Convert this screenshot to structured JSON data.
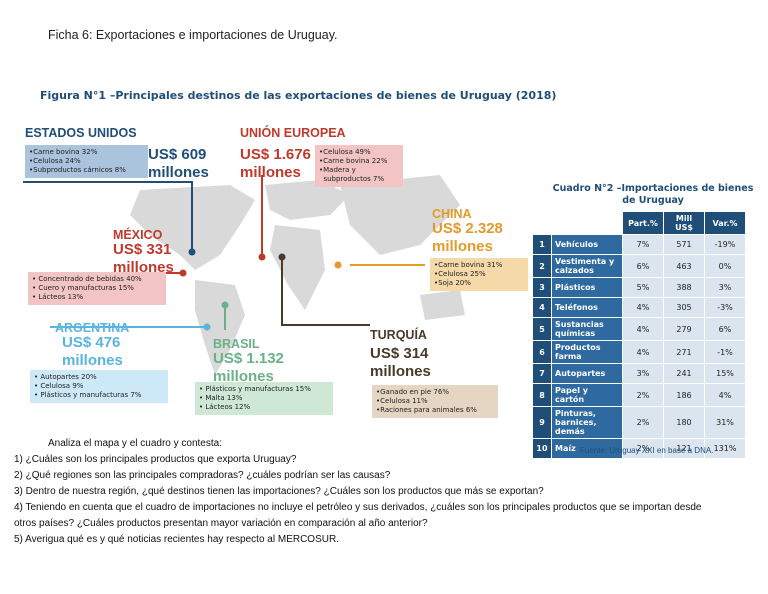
{
  "header": {
    "title": "Ficha 6: Exportaciones e importaciones de Uruguay."
  },
  "figure": {
    "title": "Figura N°1 –Principales destinos de las exportaciones de bienes de Uruguay (2018)",
    "regions": [
      {
        "name": "ESTADOS UNIDOS",
        "amount": "US$ 609",
        "unit": "millones",
        "items": [
          "•Carne bovina 32%",
          "•Celulosa 24%",
          "•Subproductos cárnicos 8%"
        ]
      },
      {
        "name": "UNIÓN EUROPEA",
        "amount": "US$ 1.676",
        "unit": "millones",
        "items": [
          "•Celulosa 49%",
          "•Carne bovina 22%",
          "•Madera y",
          "  subproductos 7%"
        ]
      },
      {
        "name": "CHINA",
        "amount": "US$ 2.328",
        "unit": "millones",
        "items": [
          "•Carne bovina 31%",
          "•Celulosa 25%",
          "•Soja 20%"
        ]
      },
      {
        "name": "MÉXICO",
        "amount": "US$ 331",
        "unit": "millones",
        "items": [
          "• Concentrado de bebidas 40%",
          "• Cuero y manufacturas 15%",
          "• Lácteos 13%"
        ]
      },
      {
        "name": "ARGENTINA",
        "amount": "US$ 476",
        "unit": "millones",
        "items": [
          "• Autopartes 20%",
          "• Celulosa 9%",
          "• Plásticos y manufacturas 7%"
        ]
      },
      {
        "name": "BRASIL",
        "amount": "US$ 1.132",
        "unit": "millones",
        "items": [
          "• Plásticos y manufacturas 15%",
          "• Malta 13%",
          "• Lácteos 12%"
        ]
      },
      {
        "name": "TURQUÍA",
        "amount": "US$ 314",
        "unit": "millones",
        "items": [
          "•Ganado en pie 76%",
          "•Celulosa 11%",
          "•Raciones para animales 6%"
        ]
      }
    ]
  },
  "table": {
    "title": "Cuadro N°2 –Importaciones de bienes de Uruguay",
    "headers": [
      "Part.%",
      "Mill US$",
      "Var.%"
    ],
    "rows": [
      [
        "1",
        "Vehículos",
        "7%",
        "571",
        "-19%"
      ],
      [
        "2",
        "Vestimenta y calzados",
        "6%",
        "463",
        "0%"
      ],
      [
        "3",
        "Plásticos",
        "5%",
        "388",
        "3%"
      ],
      [
        "4",
        "Teléfonos",
        "4%",
        "305",
        "-3%"
      ],
      [
        "5",
        "Sustancias químicas",
        "4%",
        "279",
        "6%"
      ],
      [
        "6",
        "Productos farma",
        "4%",
        "271",
        "-1%"
      ],
      [
        "7",
        "Autopartes",
        "3%",
        "241",
        "15%"
      ],
      [
        "8",
        "Papel y cartón",
        "2%",
        "186",
        "4%"
      ],
      [
        "9",
        "Pinturas, barnices, demás",
        "2%",
        "180",
        "31%"
      ],
      [
        "10",
        "Maíz",
        "2%",
        "121",
        "131%"
      ]
    ]
  },
  "source": "Fuente: Uruguay XXI en base a DNA.",
  "questions": {
    "intro": "Analiza el mapa y el cuadro y contesta:",
    "items": [
      "1) ¿Cuáles son los principales productos que exporta Uruguay?",
      "2) ¿Qué regiones son las principales compradoras? ¿cuáles podrían ser las causas?",
      "3) Dentro de nuestra región, ¿qué destinos tienen las importaciones? ¿Cuáles son los productos que más se exportan?",
      "4) Teniendo en cuenta que el cuadro de importaciones no incluye el petróleo y sus derivados, ¿cuáles son los principales productos que se importan desde",
      "otros países? ¿Cuáles productos presentan mayor variación en comparación al año anterior?",
      "5) Averigua qué es y qué noticias recientes hay respecto al MERCOSUR."
    ]
  }
}
